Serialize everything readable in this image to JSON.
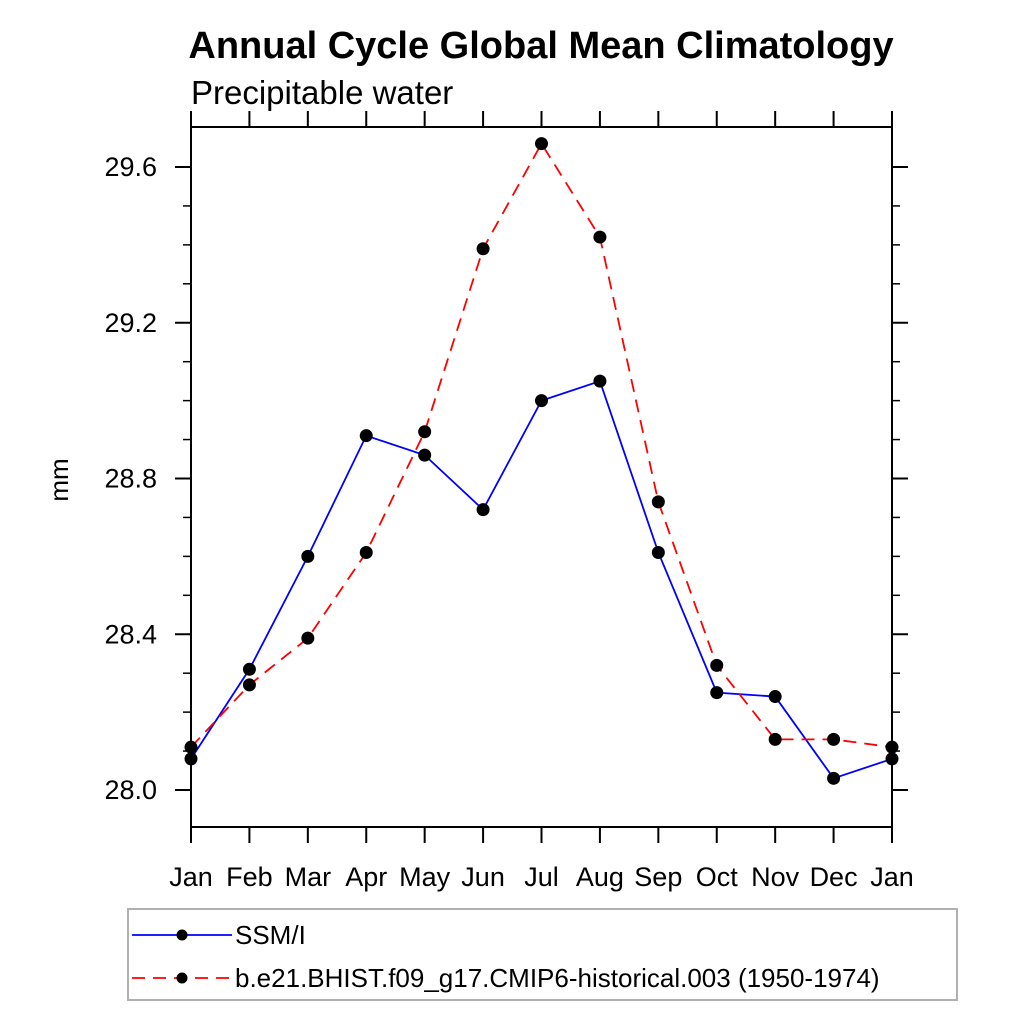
{
  "title": "Annual Cycle Global Mean Climatology",
  "subtitle": "Precipitable water",
  "y_axis": {
    "label": "mm",
    "tick_labels": [
      "28.0",
      "28.4",
      "28.8",
      "29.2",
      "29.6"
    ]
  },
  "x_axis": {
    "tick_labels": [
      "Jan",
      "Feb",
      "Mar",
      "Apr",
      "May",
      "Jun",
      "Jul",
      "Aug",
      "Sep",
      "Oct",
      "Nov",
      "Dec",
      "Jan"
    ]
  },
  "legend": {
    "items": [
      {
        "label": "SSM/I",
        "line_color": "#0000ff",
        "line_style": "solid",
        "marker_color": "#000000"
      },
      {
        "label": "b.e21.BHIST.f09_g17.CMIP6-historical.003 (1950-1974)",
        "line_color": "#ff0000",
        "line_style": "dashed",
        "marker_color": "#000000"
      }
    ]
  },
  "chart_data": {
    "type": "line",
    "title": "Annual Cycle Global Mean Climatology",
    "subtitle": "Precipitable water",
    "xlabel": "",
    "ylabel": "mm",
    "categories": [
      "Jan",
      "Feb",
      "Mar",
      "Apr",
      "May",
      "Jun",
      "Jul",
      "Aug",
      "Sep",
      "Oct",
      "Nov",
      "Dec",
      "Jan"
    ],
    "series": [
      {
        "name": "SSM/I",
        "color": "#0000ff",
        "style": "solid",
        "marker": "circle",
        "marker_color": "#000000",
        "values": [
          28.08,
          28.31,
          28.6,
          28.91,
          28.86,
          28.72,
          29.0,
          29.05,
          28.61,
          28.25,
          28.24,
          28.03,
          28.08
        ]
      },
      {
        "name": "b.e21.BHIST.f09_g17.CMIP6-historical.003 (1950-1974)",
        "color": "#ff0000",
        "style": "dashed",
        "marker": "circle",
        "marker_color": "#000000",
        "values": [
          28.11,
          28.27,
          28.39,
          28.61,
          28.92,
          29.39,
          29.66,
          29.42,
          28.74,
          28.32,
          28.13,
          28.13,
          28.11
        ]
      }
    ],
    "ylim": [
      27.9,
      29.7
    ],
    "yticks_major": [
      28.0,
      28.4,
      28.8,
      29.2,
      29.6
    ],
    "ytick_minor_step": 0.1,
    "grid": false,
    "legend_position": "bottom-left"
  }
}
